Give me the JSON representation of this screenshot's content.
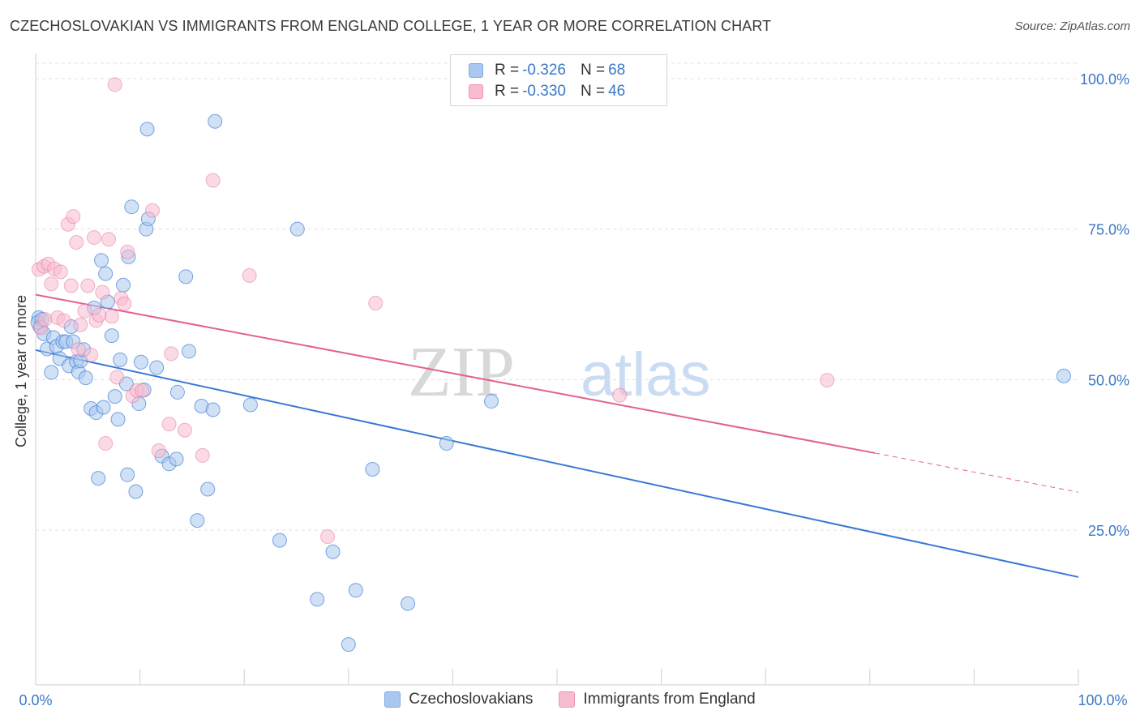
{
  "title": "CZECHOSLOVAKIAN VS IMMIGRANTS FROM ENGLAND COLLEGE, 1 YEAR OR MORE CORRELATION CHART",
  "source": "Source: ZipAtlas.com",
  "watermark": {
    "zip": "ZIP",
    "atlas": "atlas"
  },
  "legend_top": {
    "rows": [
      {
        "r_label": "R =",
        "r_value": "-0.326",
        "n_label": "N =",
        "n_value": "68",
        "color": "#aac8ef"
      },
      {
        "r_label": "R =",
        "r_value": "-0.330",
        "n_label": "N =",
        "n_value": "46",
        "color": "#f7bcd0"
      }
    ]
  },
  "legend_bottom": [
    {
      "label": "Czechoslovakians",
      "color": "#aac8ef"
    },
    {
      "label": "Immigrants from England",
      "color": "#f7bcd0"
    }
  ],
  "chart_data": {
    "type": "scatter",
    "title": "CZECHOSLOVAKIAN VS IMMIGRANTS FROM ENGLAND COLLEGE, 1 YEAR OR MORE CORRELATION CHART",
    "xlabel": "",
    "ylabel": "College, 1 year or more",
    "xlim": [
      0,
      100
    ],
    "ylim": [
      0,
      102
    ],
    "x_tick_labels": [
      "0.0%",
      "100.0%"
    ],
    "y_ticks": [
      25,
      50,
      75,
      100
    ],
    "y_tick_labels": [
      "25.0%",
      "50.0%",
      "75.0%",
      "100.0%"
    ],
    "grid": "horizontal dashed",
    "legend_placement": "bottom",
    "series": [
      {
        "name": "Czechoslovakians",
        "color": "#3a78d4",
        "fill": "#aac8ef",
        "points": [
          [
            0.3,
            60.3
          ],
          [
            0.4,
            58.8
          ],
          [
            0.8,
            57.6
          ],
          [
            1.1,
            55.1
          ],
          [
            1.5,
            51.2
          ],
          [
            1.7,
            57.0
          ],
          [
            2.0,
            55.5
          ],
          [
            2.3,
            53.5
          ],
          [
            2.6,
            56.3
          ],
          [
            2.9,
            56.3
          ],
          [
            3.2,
            52.3
          ],
          [
            3.4,
            58.8
          ],
          [
            3.6,
            56.3
          ],
          [
            3.9,
            53.0
          ],
          [
            4.1,
            51.3
          ],
          [
            4.3,
            53.1
          ],
          [
            4.6,
            55.0
          ],
          [
            4.8,
            50.3
          ],
          [
            5.3,
            45.2
          ],
          [
            5.6,
            61.9
          ],
          [
            5.8,
            44.5
          ],
          [
            6.0,
            33.6
          ],
          [
            6.3,
            69.8
          ],
          [
            6.5,
            45.4
          ],
          [
            6.7,
            67.6
          ],
          [
            6.9,
            62.9
          ],
          [
            7.3,
            57.3
          ],
          [
            7.6,
            47.2
          ],
          [
            7.9,
            43.4
          ],
          [
            8.1,
            53.3
          ],
          [
            8.4,
            65.7
          ],
          [
            8.7,
            49.3
          ],
          [
            8.8,
            34.2
          ],
          [
            8.9,
            70.4
          ],
          [
            9.2,
            78.7
          ],
          [
            9.6,
            31.4
          ],
          [
            9.9,
            46.0
          ],
          [
            10.1,
            52.9
          ],
          [
            10.4,
            48.3
          ],
          [
            10.6,
            75.0
          ],
          [
            10.7,
            91.6
          ],
          [
            10.8,
            76.7
          ],
          [
            11.6,
            52.0
          ],
          [
            12.1,
            37.3
          ],
          [
            12.8,
            36.0
          ],
          [
            13.5,
            36.8
          ],
          [
            13.6,
            47.9
          ],
          [
            14.4,
            67.1
          ],
          [
            14.7,
            54.7
          ],
          [
            15.5,
            26.6
          ],
          [
            15.9,
            45.6
          ],
          [
            16.5,
            31.8
          ],
          [
            17.0,
            45.0
          ],
          [
            17.2,
            92.9
          ],
          [
            20.6,
            45.8
          ],
          [
            23.4,
            23.3
          ],
          [
            25.1,
            75.0
          ],
          [
            27.0,
            13.5
          ],
          [
            28.5,
            21.4
          ],
          [
            30.0,
            6.0
          ],
          [
            30.7,
            15.0
          ],
          [
            32.3,
            35.1
          ],
          [
            35.7,
            12.8
          ],
          [
            39.4,
            39.4
          ],
          [
            43.7,
            46.4
          ],
          [
            98.6,
            50.6
          ],
          [
            0.2,
            59.5
          ],
          [
            0.6,
            60.0
          ]
        ],
        "trend": {
          "x0": 0,
          "y0": 54.9,
          "x1": 100,
          "y1": 17.2
        }
      },
      {
        "name": "Immigrants from England",
        "color": "#e2628c",
        "fill": "#f7bcd0",
        "points": [
          [
            0.3,
            68.3
          ],
          [
            0.5,
            58.6
          ],
          [
            0.8,
            68.8
          ],
          [
            0.9,
            60.0
          ],
          [
            1.2,
            69.2
          ],
          [
            1.5,
            65.9
          ],
          [
            1.8,
            68.4
          ],
          [
            2.1,
            60.3
          ],
          [
            2.4,
            67.9
          ],
          [
            2.7,
            59.8
          ],
          [
            3.1,
            75.8
          ],
          [
            3.4,
            65.6
          ],
          [
            3.6,
            77.1
          ],
          [
            3.9,
            72.8
          ],
          [
            4.1,
            55.0
          ],
          [
            4.3,
            59.1
          ],
          [
            4.7,
            61.4
          ],
          [
            5.0,
            65.6
          ],
          [
            5.3,
            54.1
          ],
          [
            5.6,
            73.6
          ],
          [
            5.8,
            59.8
          ],
          [
            6.1,
            60.7
          ],
          [
            6.4,
            64.5
          ],
          [
            6.7,
            39.4
          ],
          [
            7.0,
            73.3
          ],
          [
            7.3,
            60.5
          ],
          [
            7.6,
            99.0
          ],
          [
            7.8,
            50.4
          ],
          [
            8.2,
            63.5
          ],
          [
            8.5,
            62.6
          ],
          [
            8.8,
            71.2
          ],
          [
            9.3,
            47.3
          ],
          [
            9.7,
            48.2
          ],
          [
            10.2,
            48.2
          ],
          [
            11.2,
            78.1
          ],
          [
            11.8,
            38.2
          ],
          [
            12.8,
            42.6
          ],
          [
            13.0,
            54.3
          ],
          [
            14.3,
            41.6
          ],
          [
            16.0,
            37.4
          ],
          [
            17.0,
            83.1
          ],
          [
            20.5,
            67.3
          ],
          [
            28.0,
            23.9
          ],
          [
            32.6,
            62.7
          ],
          [
            56.0,
            47.4
          ],
          [
            75.9,
            49.9
          ]
        ],
        "trend": {
          "x0": 0,
          "y0": 64.1,
          "x1": 80.5,
          "y1": 37.8,
          "dash_to_x": 100,
          "dash_to_y": 31.3
        }
      }
    ]
  }
}
